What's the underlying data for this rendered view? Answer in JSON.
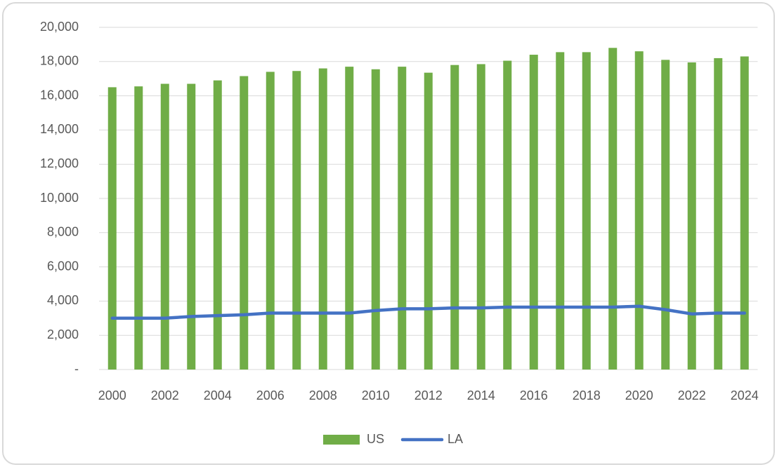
{
  "chart_data": {
    "type": "bar",
    "categories": [
      "2000",
      null,
      "2002",
      null,
      "2004",
      null,
      "2006",
      null,
      "2008",
      null,
      "2010",
      null,
      "2012",
      null,
      "2014",
      null,
      "2016",
      null,
      "2018",
      null,
      "2020",
      null,
      "2022",
      null,
      "2024"
    ],
    "series": [
      {
        "name": "US",
        "type": "bar",
        "color": "#70ad47",
        "values": [
          16500,
          16550,
          16700,
          16700,
          16900,
          17150,
          17400,
          17450,
          17600,
          17700,
          17550,
          17700,
          17350,
          17800,
          17850,
          18050,
          18400,
          18550,
          18550,
          18800,
          18600,
          18100,
          17950,
          18200,
          18300
        ]
      },
      {
        "name": "LA",
        "type": "line",
        "color": "#4472c4",
        "values": [
          3000,
          3000,
          3000,
          3100,
          3150,
          3200,
          3300,
          3300,
          3300,
          3300,
          3450,
          3550,
          3550,
          3600,
          3600,
          3650,
          3650,
          3650,
          3650,
          3650,
          3700,
          3500,
          3250,
          3300,
          3300
        ]
      }
    ],
    "ylim": [
      0,
      20000
    ],
    "yticks": [
      {
        "value": 0,
        "label": "-"
      },
      {
        "value": 2000,
        "label": "2,000"
      },
      {
        "value": 4000,
        "label": "4,000"
      },
      {
        "value": 6000,
        "label": "6,000"
      },
      {
        "value": 8000,
        "label": "8,000"
      },
      {
        "value": 10000,
        "label": "10,000"
      },
      {
        "value": 12000,
        "label": "12,000"
      },
      {
        "value": 14000,
        "label": "14,000"
      },
      {
        "value": 16000,
        "label": "16,000"
      },
      {
        "value": 18000,
        "label": "18,000"
      },
      {
        "value": 20000,
        "label": "20,000"
      }
    ],
    "grid": true,
    "legend": "bottom"
  }
}
